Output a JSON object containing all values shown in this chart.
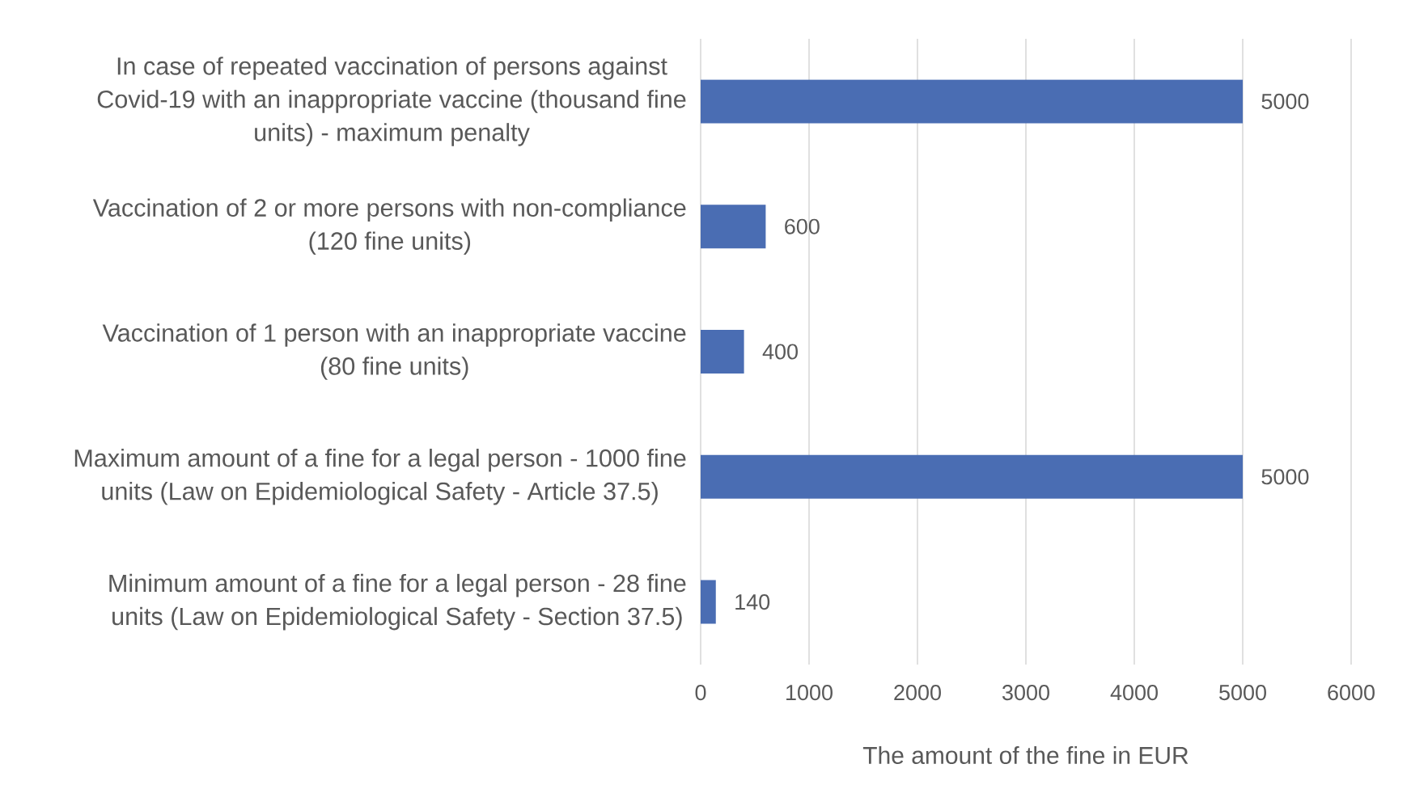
{
  "chart_data": {
    "type": "bar",
    "orientation": "horizontal",
    "categories": [
      "In case of repeated vaccination of persons against Covid-19 with an inappropriate vaccine (thousand fine units) - maximum penalty",
      "Vaccination of 2 or more persons with non-compliance (120 fine units)",
      "Vaccination of 1 person with an inappropriate vaccine (80 fine units)",
      "Maximum amount of a fine for a legal person - 1000 fine units (Law on Epidemiological Safety - Article 37.5)",
      "Minimum amount of a fine for a legal person - 28 fine units (Law on Epidemiological Safety - Section 37.5)"
    ],
    "values": [
      5000,
      600,
      400,
      5000,
      140
    ],
    "color": "#4a6db3",
    "xlabel": "The amount of the fine in EUR",
    "xlim": [
      0,
      6000
    ],
    "xticks": [
      0,
      1000,
      2000,
      3000,
      4000,
      5000,
      6000
    ],
    "grid": "x",
    "data_labels": true
  }
}
